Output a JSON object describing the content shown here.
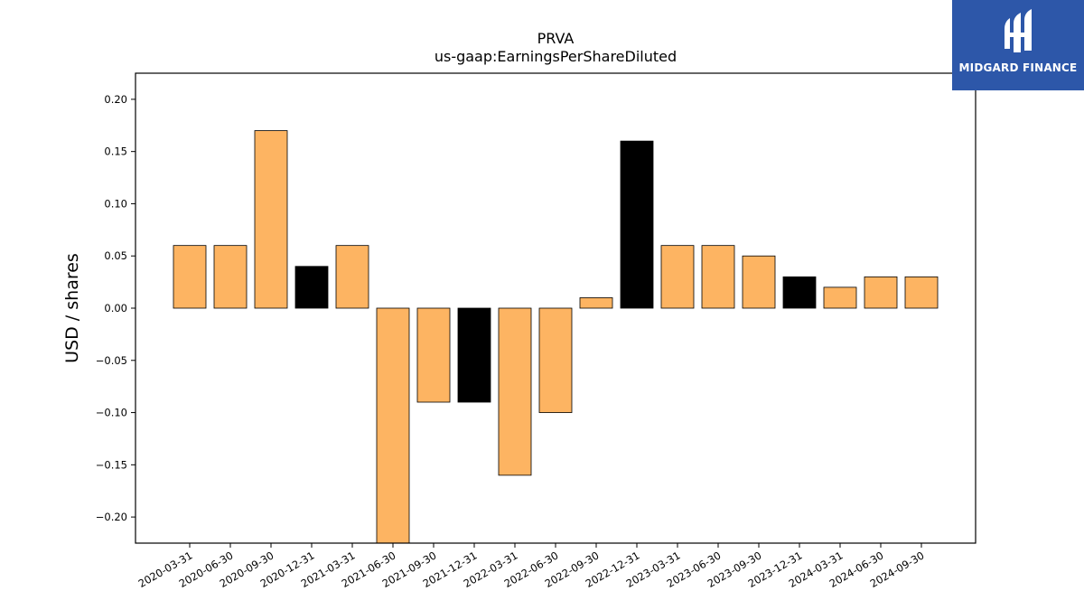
{
  "chart_data": {
    "type": "bar",
    "title": "PRVA",
    "subtitle": "us-gaap:EarningsPerShareDiluted",
    "xlabel": "",
    "ylabel": "USD / shares",
    "ylim": [
      -0.225,
      0.225
    ],
    "yticks": [
      0.2,
      0.15,
      0.1,
      0.05,
      0.0,
      -0.05,
      -0.1,
      -0.15,
      -0.2
    ],
    "ytick_labels": [
      "0.20",
      "0.15",
      "0.10",
      "0.05",
      "0.00",
      "−0.05",
      "−0.10",
      "−0.15",
      "−0.20"
    ],
    "categories": [
      "2020-03-31",
      "2020-06-30",
      "2020-09-30",
      "2020-12-31",
      "2021-03-31",
      "2021-06-30",
      "2021-09-30",
      "2021-12-31",
      "2022-03-31",
      "2022-06-30",
      "2022-09-30",
      "2022-12-31",
      "2023-03-31",
      "2023-06-30",
      "2023-09-30",
      "2023-12-31",
      "2024-03-31",
      "2024-06-30",
      "2024-09-30"
    ],
    "values": [
      0.06,
      0.06,
      0.17,
      0.04,
      0.06,
      -0.23,
      -0.09,
      -0.09,
      -0.16,
      -0.1,
      0.01,
      0.16,
      0.06,
      0.06,
      0.05,
      0.03,
      0.02,
      0.03,
      0.03
    ],
    "bar_colors": [
      "#fdb462",
      "#fdb462",
      "#fdb462",
      "#000000",
      "#fdb462",
      "#fdb462",
      "#fdb462",
      "#000000",
      "#fdb462",
      "#fdb462",
      "#fdb462",
      "#000000",
      "#fdb462",
      "#fdb462",
      "#fdb462",
      "#000000",
      "#fdb462",
      "#fdb462",
      "#fdb462"
    ],
    "grid": false,
    "legend": "none"
  },
  "logo": {
    "text": "MIDGARD FINANCE",
    "background": "#2d57a9",
    "icon": "midgard-logo-icon"
  }
}
